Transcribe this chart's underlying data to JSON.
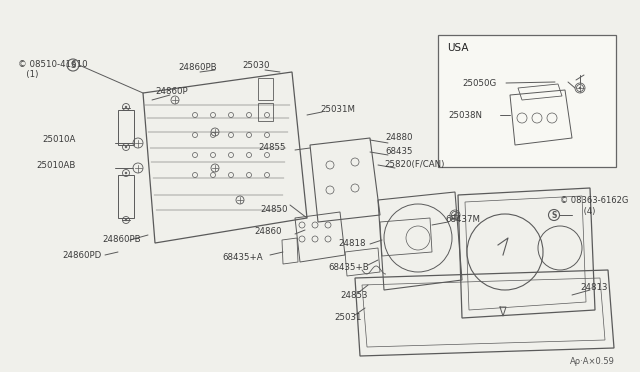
{
  "bg_color": "#f0f0eb",
  "line_color": "#5a5a5a",
  "label_color": "#3a3a3a",
  "fs": 6.2,
  "labels": {
    "S_08510": "© 08510-41610\n   (1)",
    "24860P": "24860P",
    "24860PB_top": "24860PB",
    "25030": "25030",
    "25031M": "25031M",
    "25010A": "25010A",
    "25010AB": "25010AB",
    "24860PB_bot": "24860PB",
    "24860PD": "24860PD",
    "24850": "24850",
    "24860": "24860",
    "68435A": "68435+A",
    "24855": "24855",
    "24880": "24880",
    "68435": "68435",
    "25820": "25820(F/CAN)",
    "24818": "24818",
    "68437M": "68437M",
    "68435B": "68435+B",
    "24853": "24853",
    "25031": "25031",
    "24813": "24813",
    "S_08363": "© 08363-6162G\n         (4)",
    "USA": "USA",
    "25050G": "25050G",
    "25038N": "25038N",
    "footer": "Aρ·A×0.59"
  }
}
